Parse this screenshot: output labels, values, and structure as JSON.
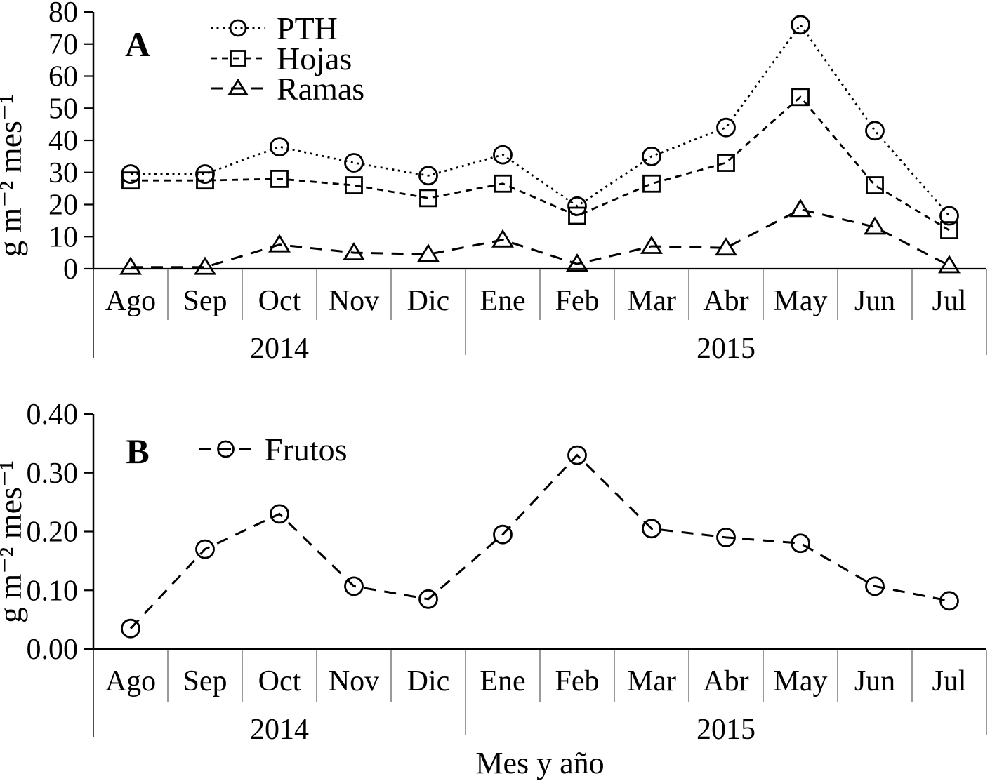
{
  "figure": {
    "xlabel": "Mes y año",
    "months": [
      "Ago",
      "Sep",
      "Oct",
      "Nov",
      "Dic",
      "Ene",
      "Feb",
      "Mar",
      "Abr",
      "May",
      "Jun",
      "Jul"
    ],
    "years": [
      {
        "label": "2014",
        "months_span": [
          0,
          5
        ]
      },
      {
        "label": "2015",
        "months_span": [
          5,
          12
        ]
      }
    ],
    "colors": {
      "line": "#000000",
      "separator": "#9a9a9a",
      "text": "#000000",
      "background": "#ffffff"
    }
  },
  "chart_data": [
    {
      "type": "line",
      "panel_label": "A",
      "title": "",
      "xlabel": "",
      "ylabel": "g m⁻² mes⁻¹",
      "ylim": [
        0,
        80
      ],
      "grid": false,
      "legend_position": "inside-top-left",
      "yticks": [
        {
          "value": 0,
          "label": "0"
        },
        {
          "value": 10,
          "label": "10"
        },
        {
          "value": 20,
          "label": "20"
        },
        {
          "value": 30,
          "label": "30"
        },
        {
          "value": 40,
          "label": "40"
        },
        {
          "value": 50,
          "label": "50"
        },
        {
          "value": 60,
          "label": "60"
        },
        {
          "value": 70,
          "label": "70"
        },
        {
          "value": 80,
          "label": "80"
        }
      ],
      "categories": [
        "Ago",
        "Sep",
        "Oct",
        "Nov",
        "Dic",
        "Ene",
        "Feb",
        "Mar",
        "Abr",
        "May",
        "Jun",
        "Jul"
      ],
      "series": [
        {
          "name": "PTH",
          "marker": "circle",
          "line_style": "dotted",
          "values": [
            29.5,
            29.5,
            38,
            33,
            29,
            35.5,
            19.5,
            35,
            44,
            76,
            43,
            16.5
          ]
        },
        {
          "name": "Hojas",
          "marker": "square",
          "line_style": "dashed-short",
          "values": [
            27.5,
            27.5,
            28,
            26,
            22,
            26.5,
            16.5,
            26.5,
            33,
            53.5,
            26,
            12
          ]
        },
        {
          "name": "Ramas",
          "marker": "triangle",
          "line_style": "dashed-long",
          "values": [
            0.5,
            0.5,
            7.5,
            5,
            4.5,
            9,
            1.5,
            7,
            6.5,
            18.5,
            13,
            1
          ]
        }
      ]
    },
    {
      "type": "line",
      "panel_label": "B",
      "title": "",
      "xlabel": "Mes y año",
      "ylabel": "g m⁻² mes⁻¹",
      "ylim": [
        0,
        0.4
      ],
      "grid": false,
      "legend_position": "inside-top-left",
      "yticks": [
        {
          "value": 0,
          "label": "0.00"
        },
        {
          "value": 0.1,
          "label": "0.10"
        },
        {
          "value": 0.2,
          "label": "0.20"
        },
        {
          "value": 0.3,
          "label": "0.30"
        },
        {
          "value": 0.4,
          "label": "0.40"
        }
      ],
      "categories": [
        "Ago",
        "Sep",
        "Oct",
        "Nov",
        "Dic",
        "Ene",
        "Feb",
        "Mar",
        "Abr",
        "May",
        "Jun",
        "Jul"
      ],
      "series": [
        {
          "name": "Frutos",
          "marker": "circle",
          "line_style": "dashed-long",
          "values": [
            0.035,
            0.17,
            0.23,
            0.107,
            0.085,
            0.195,
            0.33,
            0.205,
            0.19,
            0.18,
            0.107,
            0.082
          ]
        }
      ]
    }
  ]
}
